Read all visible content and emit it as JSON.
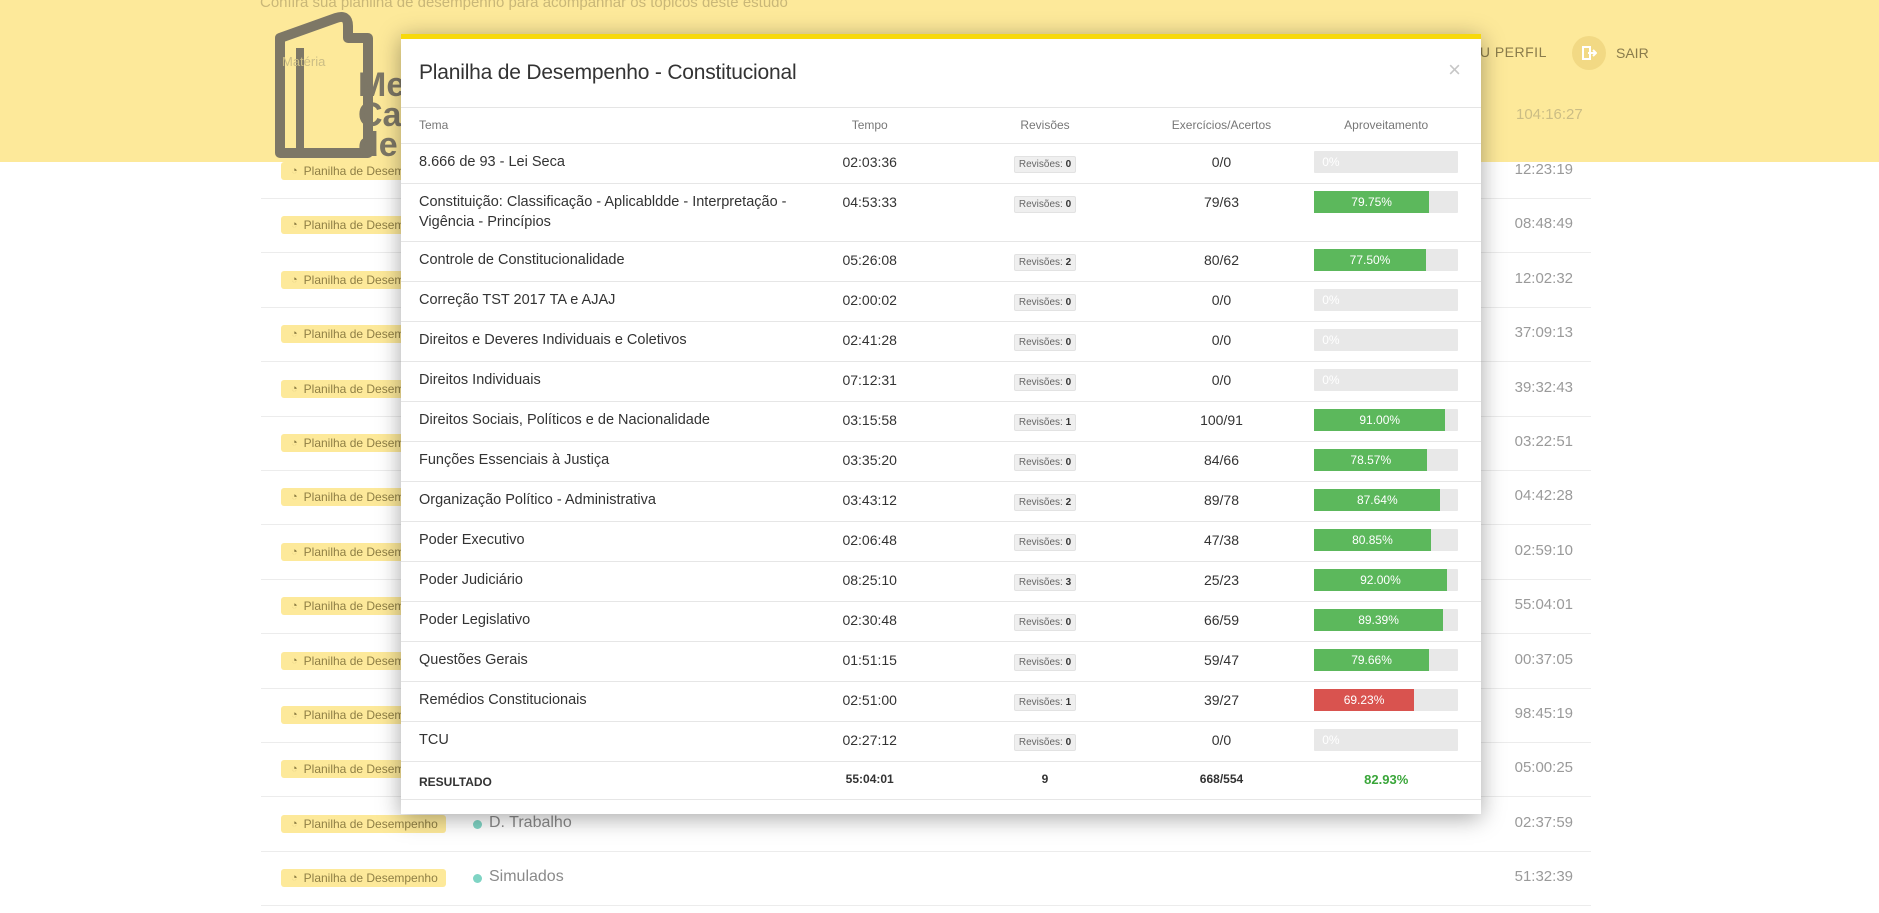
{
  "top": {
    "intro_text": "Confira sua planilha de desempenho para acompanhar os tópicos deste estudo",
    "brand": [
      "Me",
      "Ca",
      "de"
    ],
    "perfil_label": "EU PERFIL",
    "sair_label": "SAIR",
    "list_header": "Matéria",
    "first_time": "104:16:27"
  },
  "background_rows": [
    {
      "badge": "Planilha de Desempenho",
      "name": "",
      "time": "12:23:19"
    },
    {
      "badge": "Planilha de Desempenho",
      "name": "",
      "time": "08:48:49"
    },
    {
      "badge": "Planilha de Desempenho",
      "name": "",
      "time": "12:02:32"
    },
    {
      "badge": "Planilha de Desempenho",
      "name": "",
      "time": "37:09:13"
    },
    {
      "badge": "Planilha de Desempenho",
      "name": "",
      "time": "39:32:43"
    },
    {
      "badge": "Planilha de Desempenho",
      "name": "",
      "time": "03:22:51"
    },
    {
      "badge": "Planilha de Desempenho",
      "name": "",
      "time": "04:42:28"
    },
    {
      "badge": "Planilha de Desempenho",
      "name": "",
      "time": "02:59:10"
    },
    {
      "badge": "Planilha de Desempenho",
      "name": "",
      "time": "55:04:01"
    },
    {
      "badge": "Planilha de Desempenho",
      "name": "",
      "time": "00:37:05"
    },
    {
      "badge": "Planilha de Desempenho",
      "name": "",
      "time": "98:45:19"
    },
    {
      "badge": "Planilha de Desempenho",
      "name": "",
      "time": "05:00:25"
    },
    {
      "badge": "Planilha de Desempenho",
      "name": "D. Trabalho",
      "time": "02:37:59"
    },
    {
      "badge": "Planilha de Desempenho",
      "name": "Simulados",
      "time": "51:32:39"
    }
  ],
  "modal": {
    "title": "Planilha de Desempenho - Constitucional",
    "close_symbol": "×",
    "headers": {
      "tema": "Tema",
      "tempo": "Tempo",
      "revisoes": "Revisões",
      "exercicios": "Exercícios/Acertos",
      "aproveitamento": "Aproveitamento"
    },
    "revisoes_prefix": "Revisões:",
    "rows": [
      {
        "tema": "8.666 de 93 - Lei Seca",
        "tempo": "02:03:36",
        "revisoes": "0",
        "exercicios": "0/0",
        "pct_label": "0%",
        "pct": 0,
        "color": "green"
      },
      {
        "tema": "Constituição: Classificação - Aplicabldde - Interpretação - Vigência - Princípios",
        "tempo": "04:53:33",
        "revisoes": "0",
        "exercicios": "79/63",
        "pct_label": "79.75%",
        "pct": 79.75,
        "color": "green"
      },
      {
        "tema": "Controle de Constitucionalidade",
        "tempo": "05:26:08",
        "revisoes": "2",
        "exercicios": "80/62",
        "pct_label": "77.50%",
        "pct": 77.5,
        "color": "green"
      },
      {
        "tema": "Correção TST 2017 TA e AJAJ",
        "tempo": "02:00:02",
        "revisoes": "0",
        "exercicios": "0/0",
        "pct_label": "0%",
        "pct": 0,
        "color": "green"
      },
      {
        "tema": "Direitos e Deveres Individuais e Coletivos",
        "tempo": "02:41:28",
        "revisoes": "0",
        "exercicios": "0/0",
        "pct_label": "0%",
        "pct": 0,
        "color": "green"
      },
      {
        "tema": "Direitos Individuais",
        "tempo": "07:12:31",
        "revisoes": "0",
        "exercicios": "0/0",
        "pct_label": "0%",
        "pct": 0,
        "color": "green"
      },
      {
        "tema": "Direitos Sociais, Políticos e de Nacionalidade",
        "tempo": "03:15:58",
        "revisoes": "1",
        "exercicios": "100/91",
        "pct_label": "91.00%",
        "pct": 91.0,
        "color": "green"
      },
      {
        "tema": "Funções Essenciais à Justiça",
        "tempo": "03:35:20",
        "revisoes": "0",
        "exercicios": "84/66",
        "pct_label": "78.57%",
        "pct": 78.57,
        "color": "green"
      },
      {
        "tema": "Organização Político - Administrativa",
        "tempo": "03:43:12",
        "revisoes": "2",
        "exercicios": "89/78",
        "pct_label": "87.64%",
        "pct": 87.64,
        "color": "green"
      },
      {
        "tema": "Poder Executivo",
        "tempo": "02:06:48",
        "revisoes": "0",
        "exercicios": "47/38",
        "pct_label": "80.85%",
        "pct": 80.85,
        "color": "green"
      },
      {
        "tema": "Poder Judiciário",
        "tempo": "08:25:10",
        "revisoes": "3",
        "exercicios": "25/23",
        "pct_label": "92.00%",
        "pct": 92.0,
        "color": "green"
      },
      {
        "tema": "Poder Legislativo",
        "tempo": "02:30:48",
        "revisoes": "0",
        "exercicios": "66/59",
        "pct_label": "89.39%",
        "pct": 89.39,
        "color": "green"
      },
      {
        "tema": "Questões Gerais",
        "tempo": "01:51:15",
        "revisoes": "0",
        "exercicios": "59/47",
        "pct_label": "79.66%",
        "pct": 79.66,
        "color": "green"
      },
      {
        "tema": "Remédios Constitucionais",
        "tempo": "02:51:00",
        "revisoes": "1",
        "exercicios": "39/27",
        "pct_label": "69.23%",
        "pct": 69.23,
        "color": "red"
      },
      {
        "tema": "TCU",
        "tempo": "02:27:12",
        "revisoes": "0",
        "exercicios": "0/0",
        "pct_label": "0%",
        "pct": 0,
        "color": "green"
      }
    ],
    "total": {
      "label": "RESULTADO",
      "tempo": "55:04:01",
      "revisoes": "9",
      "exercicios": "668/554",
      "aproveitamento": "82.93%"
    }
  },
  "colors": {
    "accent_yellow": "#fde99a",
    "modal_top_border": "#f7d90c",
    "bar_green": "#5cb85c",
    "bar_red": "#d9534f",
    "total_green": "#3aa63a"
  }
}
